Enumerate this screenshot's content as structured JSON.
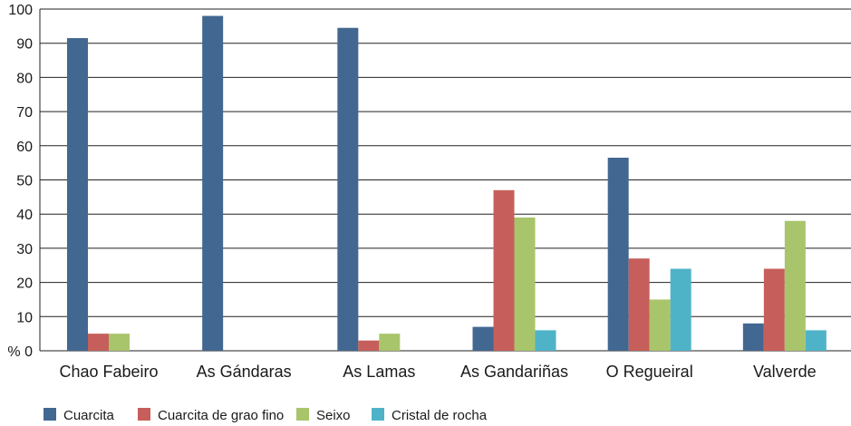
{
  "chart_data": {
    "type": "bar",
    "categories": [
      "Chao Fabeiro",
      "As Gándaras",
      "As Lamas",
      "As Gandariñas",
      "O Regueiral",
      "Valverde"
    ],
    "series": [
      {
        "name": "Cuarcita",
        "color": "#426790",
        "values": [
          91.5,
          98,
          94.5,
          7,
          56.5,
          8
        ]
      },
      {
        "name": "Cuarcita de grao fino",
        "color": "#c65f5b",
        "values": [
          5,
          0,
          3,
          47,
          27,
          24
        ]
      },
      {
        "name": "Seixo",
        "color": "#a9c56b",
        "values": [
          5,
          0,
          5,
          39,
          15,
          38
        ]
      },
      {
        "name": "Cristal de rocha",
        "color": "#4fb3c8",
        "values": [
          0,
          0,
          0,
          6,
          24,
          6
        ]
      }
    ],
    "ylim": [
      0,
      100
    ],
    "yticks": [
      0,
      10,
      20,
      30,
      40,
      50,
      60,
      70,
      80,
      90,
      100
    ],
    "ytick_labels": [
      "% 0",
      "10",
      "20",
      "30",
      "40",
      "50",
      "60",
      "70",
      "80",
      "90",
      "100"
    ],
    "grid": true,
    "legend": "bottom-left"
  }
}
